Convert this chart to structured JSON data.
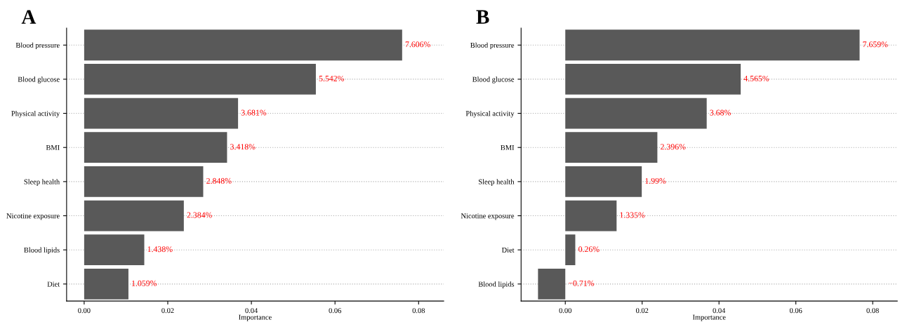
{
  "chart_data": [
    {
      "type": "bar",
      "title": "A",
      "orientation": "horizontal",
      "xlabel": "Importance",
      "color": "#595959",
      "grid": "y",
      "legend": false,
      "categories": [
        "Blood pressure",
        "Blood glucose",
        "Physical activity",
        "BMI",
        "Sleep health",
        "Nicotine exposure",
        "Blood lipids",
        "Diet"
      ],
      "values": [
        0.07606,
        0.05542,
        0.03681,
        0.03418,
        0.02848,
        0.02384,
        0.01438,
        0.01059
      ],
      "value_labels": [
        "7.606%",
        "5.542%",
        "3.681%",
        "3.418%",
        "2.848%",
        "2.384%",
        "1.438%",
        "1.059%"
      ],
      "xlim": [
        -0.0042,
        0.086
      ],
      "xticks": [
        {
          "value": 0,
          "label": "0.00"
        },
        {
          "value": 0.02,
          "label": "0.02"
        },
        {
          "value": 0.04,
          "label": "0.04"
        },
        {
          "value": 0.06,
          "label": "0.06"
        },
        {
          "value": 0.08,
          "label": "0.08"
        }
      ]
    },
    {
      "type": "bar",
      "title": "B",
      "orientation": "horizontal",
      "xlabel": "Importance",
      "color": "#595959",
      "grid": "y",
      "legend": false,
      "categories": [
        "Blood pressure",
        "Blood glucose",
        "Physical activity",
        "BMI",
        "Sleep health",
        "Nicotine exposure",
        "Diet",
        "Blood lipids"
      ],
      "values": [
        0.07659,
        0.04565,
        0.0368,
        0.02396,
        0.0199,
        0.01335,
        0.0026,
        -0.0071
      ],
      "value_labels": [
        "7.659%",
        "4.565%",
        "3.68%",
        "2.396%",
        "1.99%",
        "1.335%",
        "0.26%",
        "−0.71%"
      ],
      "xlim": [
        -0.0115,
        0.0864
      ],
      "xticks": [
        {
          "value": 0,
          "label": "0.00"
        },
        {
          "value": 0.02,
          "label": "0.02"
        },
        {
          "value": 0.04,
          "label": "0.04"
        },
        {
          "value": 0.06,
          "label": "0.06"
        },
        {
          "value": 0.08,
          "label": "0.08"
        }
      ]
    }
  ]
}
